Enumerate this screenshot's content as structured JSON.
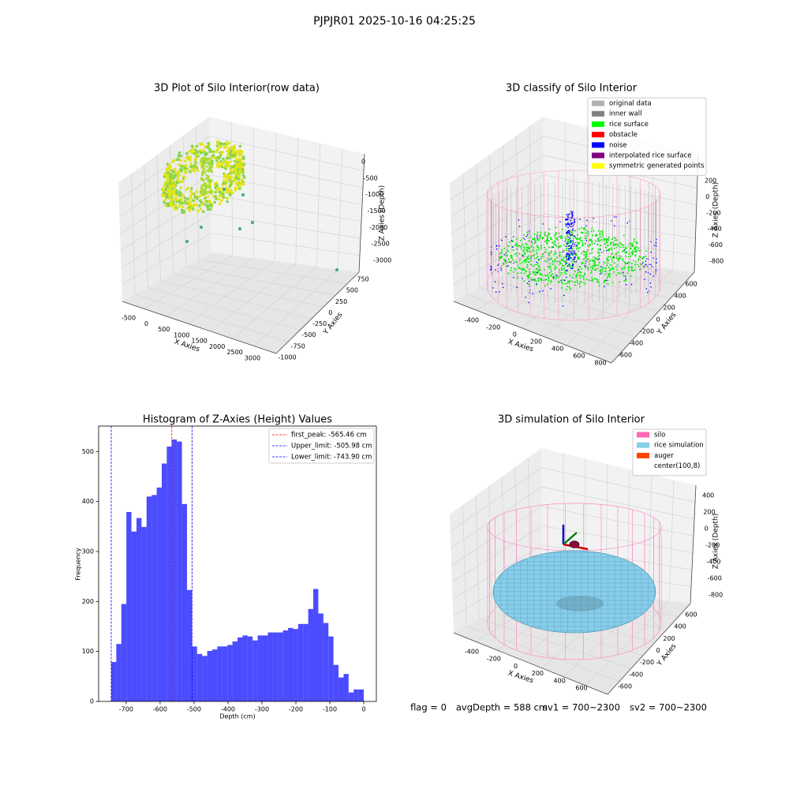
{
  "title": "PJPJR01 2025-10-16 04:25:25",
  "chart_data": [
    {
      "type": "scatter3d",
      "title": "3D Plot of Silo Interior(row data)",
      "xlabel": "X Axies",
      "ylabel": "Y Axies",
      "zlabel": "Z Axies (Depth)",
      "xticks": [
        -500,
        0,
        500,
        1000,
        1500,
        2000,
        2500,
        3000
      ],
      "yticks": [
        750,
        500,
        250,
        0,
        -250,
        -500,
        -750,
        -1000
      ],
      "zticks": [
        0,
        -500,
        -1000,
        -1500,
        -2000,
        -2500,
        -3000
      ]
    },
    {
      "type": "scatter3d",
      "title": "3D classify of Silo Interior",
      "xlabel": "X Axies",
      "ylabel": "Y Axies",
      "zlabel": "Z Axies (Depth)",
      "xticks": [
        -400,
        -200,
        0,
        200,
        400,
        600,
        800
      ],
      "yticks": [
        600,
        400,
        200,
        0,
        -200,
        -400,
        -600
      ],
      "zticks": [
        200,
        0,
        -200,
        -400,
        -600,
        -800
      ],
      "legend": [
        {
          "name": "original data",
          "color": "#b0b0b0"
        },
        {
          "name": "inner wall",
          "color": "#808080"
        },
        {
          "name": "rice surface",
          "color": "#00ff00"
        },
        {
          "name": "obstacle",
          "color": "#ff0000"
        },
        {
          "name": "noise",
          "color": "#0000ff"
        },
        {
          "name": "interpolated rice surface",
          "color": "#800080"
        },
        {
          "name": "symmetric generated points",
          "color": "#ffff00"
        }
      ]
    },
    {
      "type": "histogram",
      "title": "Histogram of Z-Axies (Height) Values",
      "xlabel": "Depth (cm)",
      "ylabel": "Frequency",
      "color": "#0000ff",
      "alpha": 0.7,
      "bins": [
        -743.9,
        -729.0,
        -714.1,
        -699.3,
        -684.4,
        -669.5,
        -654.6,
        -639.8,
        -624.9,
        -610.0,
        -595.1,
        -580.3,
        -565.4,
        -550.5,
        -535.6,
        -520.7,
        -505.9,
        -491.0,
        -476.1,
        -461.2,
        -446.4,
        -431.5,
        -416.6,
        -401.7,
        -386.8,
        -372.0,
        -357.1,
        -342.2,
        -327.3,
        -312.5,
        -297.6,
        -282.7,
        -267.8,
        -252.9,
        -238.1,
        -223.2,
        -208.3,
        -193.4,
        -178.6,
        -163.7,
        -148.8,
        -133.9,
        -119.0,
        -104.2,
        -89.3,
        -74.4,
        -59.5,
        -44.7,
        -29.8,
        -14.9,
        0
      ],
      "values": [
        79,
        115,
        195,
        379,
        340,
        367,
        349,
        410,
        413,
        428,
        476,
        510,
        524,
        520,
        395,
        223,
        110,
        95,
        91,
        101,
        104,
        110,
        110,
        113,
        120,
        128,
        132,
        130,
        122,
        132,
        132,
        138,
        138,
        138,
        142,
        147,
        145,
        155,
        155,
        185,
        225,
        176,
        157,
        130,
        73,
        48,
        55,
        18,
        24,
        24
      ],
      "xlim": [
        -781,
        37
      ],
      "ylim": [
        0,
        551
      ],
      "xticks": [
        -700,
        -600,
        -500,
        -400,
        -300,
        -200,
        -100,
        0
      ],
      "yticks": [
        0,
        100,
        200,
        300,
        400,
        500
      ],
      "lines": [
        {
          "name": "first_peak: -565.46 cm",
          "value": -565.46,
          "color": "#ff0000"
        },
        {
          "name": "Upper_limit: -505.98 cm",
          "value": -505.98,
          "color": "#0000ff"
        },
        {
          "name": "Lower_limit: -743.90 cm",
          "value": -743.9,
          "color": "#0000ff"
        }
      ]
    },
    {
      "type": "surface3d",
      "title": "3D simulation of Silo Interior",
      "xlabel": "X Axies",
      "ylabel": "Y Axies",
      "zlabel": "Z Axies (Depth)",
      "xticks": [
        -400,
        -200,
        0,
        200,
        400,
        600
      ],
      "yticks": [
        600,
        400,
        200,
        0,
        -200,
        -400,
        -600
      ],
      "zticks": [
        400,
        200,
        0,
        -200,
        -400,
        -600,
        -800
      ],
      "legend": [
        {
          "name": "silo",
          "color": "#ff69b4"
        },
        {
          "name": "rice simulation",
          "color": "#87ceeb"
        },
        {
          "name": "auger",
          "color": "#ff4500"
        },
        {
          "name": "center(100,8)",
          "color": "#ffffff"
        }
      ]
    }
  ],
  "footer": [
    "flag = 0",
    "avgDepth = 588 cm",
    "sv1 = 700~2300",
    "sv2 = 700~2300"
  ]
}
